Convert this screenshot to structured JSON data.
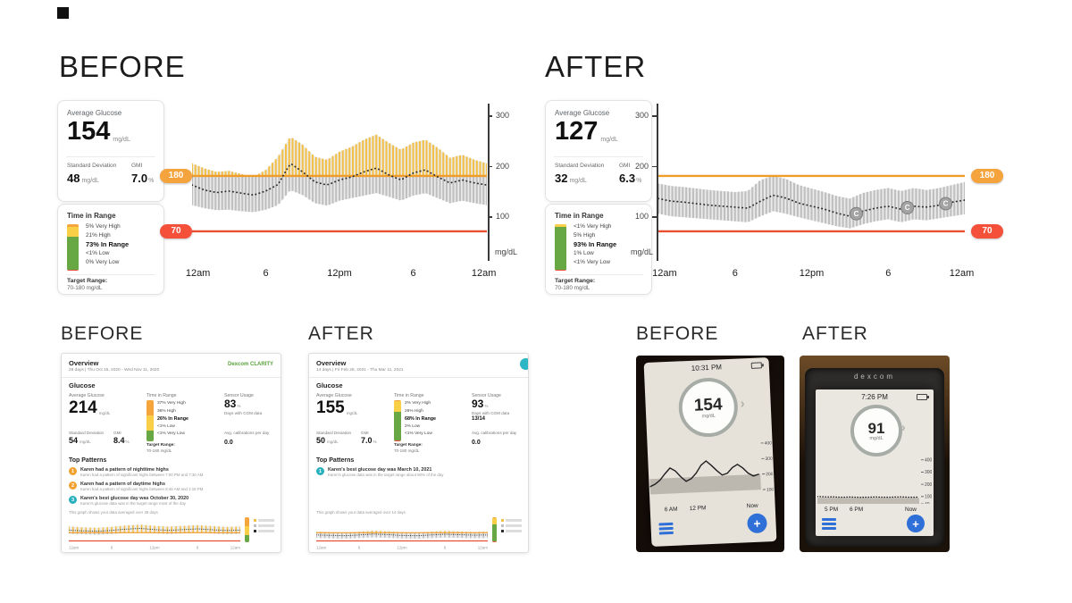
{
  "top": {
    "before": {
      "heading": "BEFORE",
      "card1": {
        "avg_label": "Average Glucose",
        "avg_value": "154",
        "avg_unit": "mg/dL",
        "sd_label": "Standard Deviation",
        "sd_value": "48",
        "sd_unit": "mg/dL",
        "gmi_label": "GMI",
        "gmi_value": "7.0",
        "gmi_unit": "%"
      },
      "card2": {
        "title": "Time in Range",
        "rows": [
          {
            "pct": "5%",
            "label": "Very High"
          },
          {
            "pct": "21%",
            "label": "High"
          },
          {
            "pct": "73%",
            "label": "In Range"
          },
          {
            "pct": "<1%",
            "label": "Low"
          },
          {
            "pct": "0%",
            "label": "Very Low"
          }
        ],
        "segments": [
          {
            "v": 5,
            "c": "#f5a53b"
          },
          {
            "v": 21,
            "c": "#f8cf47"
          },
          {
            "v": 73,
            "c": "#67a844"
          },
          {
            "v": 0.7,
            "c": "#ef4e3a"
          },
          {
            "v": 0.3,
            "c": "#b01c0e"
          }
        ],
        "target_label": "Target Range:",
        "target_value": "70-180 mg/dL"
      }
    },
    "after": {
      "heading": "AFTER",
      "card1": {
        "avg_label": "Average Glucose",
        "avg_value": "127",
        "avg_unit": "mg/dL",
        "sd_label": "Standard Deviation",
        "sd_value": "32",
        "sd_unit": "mg/dL",
        "gmi_label": "GMI",
        "gmi_value": "6.3",
        "gmi_unit": "%"
      },
      "card2": {
        "title": "Time in Range",
        "rows": [
          {
            "pct": "<1%",
            "label": "Very High"
          },
          {
            "pct": "5%",
            "label": "High"
          },
          {
            "pct": "93%",
            "label": "In Range"
          },
          {
            "pct": "1%",
            "label": "Low"
          },
          {
            "pct": "<1%",
            "label": "Very Low"
          }
        ],
        "segments": [
          {
            "v": 0.5,
            "c": "#f5a53b"
          },
          {
            "v": 5,
            "c": "#f8cf47"
          },
          {
            "v": 93,
            "c": "#67a844"
          },
          {
            "v": 1,
            "c": "#ef4e3a"
          },
          {
            "v": 0.5,
            "c": "#b01c0e"
          }
        ],
        "target_label": "Target Range:",
        "target_value": "70-180 mg/dL"
      }
    }
  },
  "chart_data": [
    {
      "type": "area",
      "name": "before-agp",
      "title": "BEFORE 24-hour glucose profile (10/90th percentile band with median)",
      "x_hours": [
        0,
        1,
        2,
        3,
        4,
        5,
        6,
        7,
        8,
        9,
        10,
        11,
        12,
        13,
        14,
        15,
        16,
        17,
        18,
        19,
        20,
        21,
        22,
        23,
        24
      ],
      "median": [
        162,
        152,
        147,
        150,
        146,
        142,
        150,
        163,
        205,
        188,
        168,
        162,
        172,
        178,
        188,
        196,
        182,
        172,
        186,
        192,
        178,
        166,
        172,
        166,
        162
      ],
      "p90": [
        205,
        195,
        188,
        190,
        184,
        178,
        192,
        218,
        258,
        242,
        218,
        212,
        228,
        238,
        252,
        262,
        246,
        232,
        246,
        252,
        236,
        216,
        222,
        212,
        205
      ],
      "p10": [
        122,
        116,
        112,
        113,
        110,
        108,
        113,
        122,
        152,
        142,
        126,
        121,
        131,
        136,
        141,
        146,
        139,
        131,
        141,
        146,
        136,
        126,
        131,
        126,
        122
      ],
      "ylim": [
        15,
        320
      ],
      "target": [
        70,
        180
      ],
      "target_high_label": "180",
      "target_low_label": "70",
      "y_ticks": [
        300,
        200,
        100
      ],
      "y_unit": "mg/dL",
      "x_ticks": [
        "12am",
        "6",
        "12pm",
        "6",
        "12am"
      ]
    },
    {
      "type": "area",
      "name": "after-agp",
      "title": "AFTER 24-hour glucose profile (10/90th percentile band with median)",
      "x_hours": [
        0,
        1,
        2,
        3,
        4,
        5,
        6,
        7,
        8,
        9,
        10,
        11,
        12,
        13,
        14,
        15,
        16,
        17,
        18,
        19,
        20,
        21,
        22,
        23,
        24
      ],
      "median": [
        135,
        130,
        128,
        125,
        122,
        120,
        118,
        116,
        130,
        142,
        136,
        126,
        120,
        114,
        106,
        100,
        110,
        116,
        120,
        114,
        120,
        118,
        122,
        128,
        132
      ],
      "p90": [
        165,
        160,
        158,
        155,
        152,
        150,
        148,
        150,
        172,
        180,
        174,
        162,
        155,
        148,
        140,
        135,
        146,
        152,
        156,
        150,
        156,
        152,
        156,
        162,
        168
      ],
      "p10": [
        105,
        100,
        98,
        96,
        94,
        92,
        90,
        88,
        100,
        110,
        105,
        98,
        92,
        86,
        80,
        76,
        84,
        90,
        94,
        88,
        94,
        92,
        96,
        100,
        104
      ],
      "ylim": [
        15,
        320
      ],
      "target": [
        70,
        180
      ],
      "target_high_label": "180",
      "target_low_label": "70",
      "y_ticks": [
        300,
        200,
        100
      ],
      "y_unit": "mg/dL",
      "x_ticks": [
        "12am",
        "6",
        "12pm",
        "6",
        "12am"
      ],
      "markers": [
        {
          "hour": 15.5,
          "label": "C"
        },
        {
          "hour": 19.5,
          "label": "C"
        },
        {
          "hour": 22.5,
          "label": "C"
        }
      ]
    },
    {
      "type": "area",
      "name": "report-before-mini-agp",
      "mini": true,
      "x_hours": [
        0,
        2,
        4,
        6,
        8,
        10,
        12,
        14,
        16,
        18,
        20,
        22,
        24
      ],
      "median": [
        215,
        205,
        200,
        212,
        228,
        238,
        222,
        212,
        222,
        232,
        220,
        210,
        215
      ],
      "p90": [
        265,
        252,
        246,
        260,
        278,
        290,
        272,
        262,
        272,
        282,
        270,
        258,
        264
      ],
      "p10": [
        165,
        158,
        152,
        162,
        176,
        184,
        170,
        162,
        170,
        180,
        168,
        160,
        164
      ],
      "ylim": [
        40,
        400
      ],
      "target": [
        70,
        180
      ],
      "x_ticks": [
        "12am",
        "6",
        "12pm",
        "6",
        "12am"
      ]
    },
    {
      "type": "area",
      "name": "report-after-mini-agp",
      "mini": true,
      "x_hours": [
        0,
        2,
        4,
        6,
        8,
        10,
        12,
        14,
        16,
        18,
        20,
        22,
        24
      ],
      "median": [
        150,
        145,
        140,
        150,
        162,
        155,
        144,
        140,
        150,
        160,
        154,
        148,
        150
      ],
      "p90": [
        195,
        188,
        182,
        194,
        208,
        200,
        188,
        182,
        194,
        205,
        198,
        190,
        194
      ],
      "p10": [
        108,
        104,
        100,
        108,
        118,
        112,
        103,
        100,
        108,
        116,
        111,
        106,
        108
      ],
      "ylim": [
        40,
        400
      ],
      "target": [
        70,
        180
      ],
      "x_ticks": [
        "12am",
        "6",
        "12pm",
        "6",
        "12am"
      ]
    },
    {
      "type": "line",
      "name": "device-before-trace",
      "values": [
        150,
        165,
        190,
        230,
        265,
        245,
        205,
        175,
        190,
        225,
        275,
        300,
        270,
        235,
        205,
        215,
        250,
        270,
        245,
        210,
        190,
        200
      ],
      "ylim": [
        40,
        420
      ],
      "band": [
        100,
        200
      ],
      "y_ticks": [
        400,
        300,
        200,
        100
      ],
      "dotted": false
    },
    {
      "type": "line",
      "name": "device-after-trace",
      "values": [
        100,
        98,
        96,
        97,
        95,
        94,
        96,
        95,
        93,
        94,
        95,
        96,
        95,
        94,
        95,
        96,
        97,
        95,
        94,
        95
      ],
      "ylim": [
        40,
        420
      ],
      "band": [
        40,
        90
      ],
      "y_ticks": [
        400,
        300,
        200,
        100,
        40
      ],
      "dotted": true
    }
  ],
  "reports": {
    "before": {
      "heading": "BEFORE",
      "header": {
        "title": "Overview",
        "range": "28 days | Thu Oct 15, 2020 - Wed Nov 11, 2020",
        "logo": "Dexcom CLARITY"
      },
      "section_title": "Glucose",
      "avg_label": "Average Glucose",
      "avg_value": "214",
      "avg_unit": "mg/dL",
      "sd_label": "Standard Deviation",
      "sd_value": "54",
      "sd_unit": "mg/dL",
      "gmi_label": "GMI",
      "gmi_value": "8.4",
      "gmi_unit": "%",
      "tir_label": "Time in Range",
      "tir_rows": [
        {
          "pct": "37%",
          "label": "Very High"
        },
        {
          "pct": "36%",
          "label": "High"
        },
        {
          "pct": "26%",
          "label": "In Range"
        },
        {
          "pct": "<1%",
          "label": "Low"
        },
        {
          "pct": "<1%",
          "label": "Very Low"
        }
      ],
      "tir_segments": [
        {
          "v": 37,
          "c": "#f5a53b"
        },
        {
          "v": 36,
          "c": "#f8cf47"
        },
        {
          "v": 26,
          "c": "#67a844"
        },
        {
          "v": 0.5,
          "c": "#ef4e3a"
        },
        {
          "v": 0.5,
          "c": "#b01c0e"
        }
      ],
      "target_label": "Target Range:",
      "target_value": "70-180 mg/dL",
      "sensor_label": "Sensor Usage",
      "sensor_value": "83",
      "sensor_unit": "%",
      "sensor_sub1": "Days with CGM data",
      "sensor_sub2": "",
      "calib_label": "Avg. calibrations per day",
      "calib_value": "0.0",
      "patterns_title": "Top Patterns",
      "patterns": [
        {
          "num": "1",
          "color": "#f0a12e",
          "title": "Karen had a pattern of nighttime highs",
          "sub": "Karen had a pattern of significant highs between 7:00 PM and 7:30 AM"
        },
        {
          "num": "2",
          "color": "#f0a12e",
          "title": "Karen had a pattern of daytime highs",
          "sub": "Karen had a pattern of significant highs between 8:45 AM and 1:15 PM"
        },
        {
          "num": "3",
          "color": "#28b0bf",
          "title": "Karen's best glucose day was October 30, 2020",
          "sub": "Karen's glucose data was in the target range most of the day"
        }
      ],
      "graph_caption": "This graph shows your data averaged over 28 days"
    },
    "after": {
      "heading": "AFTER",
      "header": {
        "title": "Overview",
        "range": "14 days | Fri Feb 26, 2021 - Thu Mar 11, 2021"
      },
      "section_title": "Glucose",
      "avg_label": "Average Glucose",
      "avg_value": "155",
      "avg_unit": "mg/dL",
      "sd_label": "Standard Deviation",
      "sd_value": "50",
      "sd_unit": "mg/dL",
      "gmi_label": "GMI",
      "gmi_value": "7.0",
      "gmi_unit": "%",
      "tir_label": "Time in Range",
      "tir_rows": [
        {
          "pct": "2%",
          "label": "Very High"
        },
        {
          "pct": "26%",
          "label": "High"
        },
        {
          "pct": "68%",
          "label": "In Range"
        },
        {
          "pct": "2%",
          "label": "Low"
        },
        {
          "pct": "<1%",
          "label": "Very Low"
        }
      ],
      "tir_segments": [
        {
          "v": 2,
          "c": "#f5a53b"
        },
        {
          "v": 26,
          "c": "#f8cf47"
        },
        {
          "v": 68,
          "c": "#67a844"
        },
        {
          "v": 2,
          "c": "#ef4e3a"
        },
        {
          "v": 1,
          "c": "#b01c0e"
        }
      ],
      "target_label": "Target Range:",
      "target_value": "70-180 mg/dL",
      "sensor_label": "Sensor Usage",
      "sensor_value": "93",
      "sensor_unit": "%",
      "sensor_sub1": "Days with CGM data",
      "sensor_sub2": "13/14",
      "calib_label": "Avg. calibrations per day",
      "calib_value": "0.0",
      "patterns_title": "Top Patterns",
      "patterns": [
        {
          "num": "1",
          "color": "#28b0bf",
          "title": "Karen's best glucose day was March 10, 2021",
          "sub": "Karen's glucose data was in the target range about 90% of the day"
        }
      ],
      "graph_caption": "This graph shows your data averaged over 14 days"
    }
  },
  "devices": {
    "before_heading": "BEFORE",
    "after_heading": "AFTER",
    "before": {
      "time": "10:31 PM",
      "reading": "154",
      "unit": "mg/dL",
      "x_label1": "6 AM",
      "x_label2": "12 PM",
      "now": "Now"
    },
    "after": {
      "brand": "dexcom",
      "time": "7:26 PM",
      "reading": "91",
      "unit": "mg/dL",
      "x_label1": "5 PM",
      "x_label2": "6 PM",
      "now": "Now"
    }
  }
}
